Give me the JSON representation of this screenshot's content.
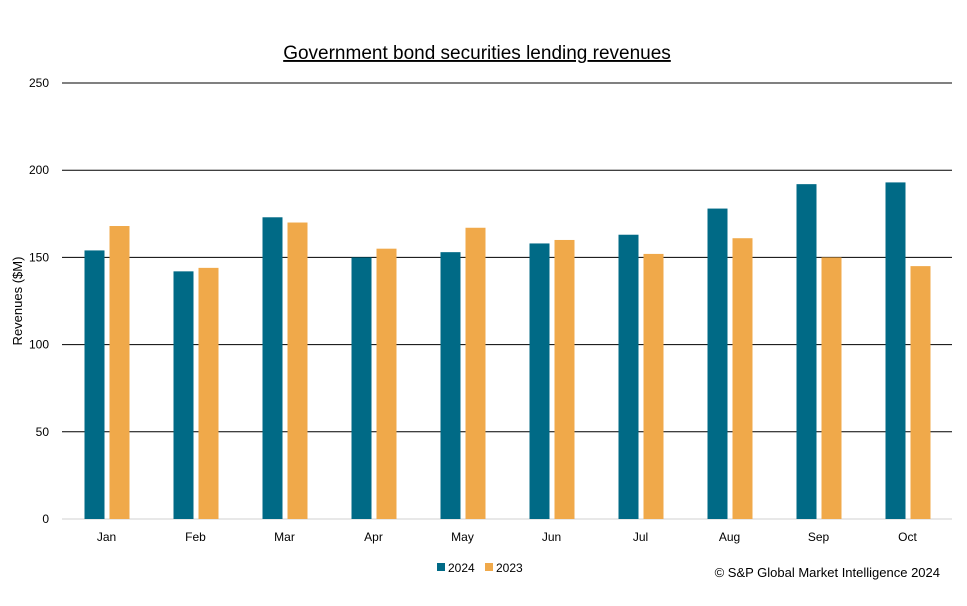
{
  "chart_data": {
    "type": "bar",
    "title": "Government bond securities lending revenues",
    "xlabel": "",
    "ylabel": "Revenues ($M)",
    "ylim": [
      0,
      250
    ],
    "yticks": [
      0,
      50,
      100,
      150,
      200,
      250
    ],
    "grid": true,
    "legend_position": "bottom",
    "categories": [
      "Jan",
      "Feb",
      "Mar",
      "Apr",
      "May",
      "Jun",
      "Jul",
      "Aug",
      "Sep",
      "Oct"
    ],
    "series": [
      {
        "name": "2024",
        "color": "#006a86",
        "values": [
          154,
          142,
          173,
          150,
          153,
          158,
          163,
          178,
          192,
          193
        ]
      },
      {
        "name": "2023",
        "color": "#f0a94a",
        "values": [
          168,
          144,
          170,
          155,
          167,
          160,
          152,
          161,
          150,
          145
        ]
      }
    ],
    "source": "© S&P Global Market Intelligence 2024"
  }
}
